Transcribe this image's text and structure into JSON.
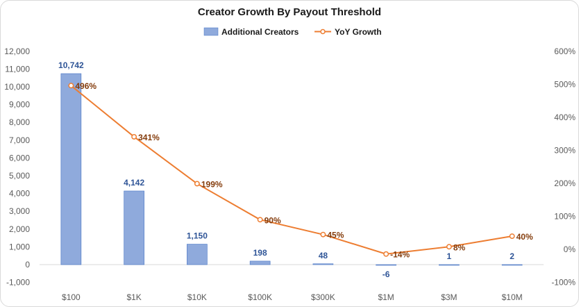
{
  "chart_data": {
    "type": "bar",
    "title": "Creator Growth By Payout Threshold",
    "categories": [
      "$100",
      "$1K",
      "$10K",
      "$100K",
      "$300K",
      "$1M",
      "$3M",
      "$10M"
    ],
    "series": [
      {
        "name": "Additional Creators",
        "type": "bar",
        "axis": "left",
        "values": [
          10742,
          4142,
          1150,
          198,
          48,
          -6,
          1,
          2
        ],
        "labels": [
          "10,742",
          "4,142",
          "1,150",
          "198",
          "48",
          "-6",
          "1",
          "2"
        ],
        "color": "#8faadc"
      },
      {
        "name": "YoY Growth",
        "type": "line",
        "axis": "right",
        "values": [
          496,
          341,
          199,
          90,
          45,
          -14,
          8,
          40
        ],
        "labels": [
          "496%",
          "341%",
          "199%",
          "90%",
          "45%",
          "-14%",
          "8%",
          "40%"
        ],
        "color": "#ed7d31"
      }
    ],
    "y_left": {
      "ylim": [
        -1000,
        12000
      ],
      "ticks": [
        -1000,
        0,
        1000,
        2000,
        3000,
        4000,
        5000,
        6000,
        7000,
        8000,
        9000,
        10000,
        11000,
        12000
      ],
      "tick_labels": [
        "-1,000",
        "0",
        "1,000",
        "2,000",
        "3,000",
        "4,000",
        "5,000",
        "6,000",
        "7,000",
        "8,000",
        "9,000",
        "10,000",
        "11,000",
        "12,000"
      ]
    },
    "y_right": {
      "ylim": [
        -100,
        600
      ],
      "ticks": [
        -100,
        0,
        100,
        200,
        300,
        400,
        500,
        600
      ],
      "tick_labels": [
        "-100%",
        "0%",
        "100%",
        "200%",
        "300%",
        "400%",
        "500%",
        "600%"
      ]
    },
    "legend_position": "top-center",
    "grid": false
  }
}
